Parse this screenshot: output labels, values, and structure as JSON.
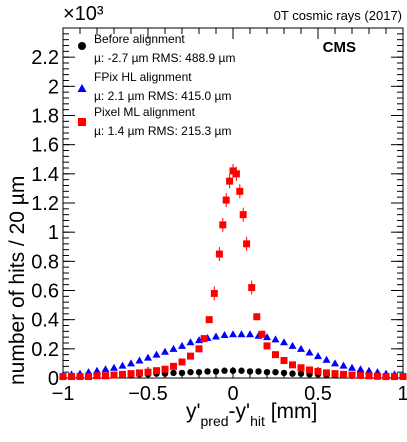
{
  "chart_data": {
    "type": "scatter",
    "top_right_label": "0T cosmic rays (2017)",
    "experiment_label": "CMS",
    "y_multiplier": "×10³",
    "ylabel": "number of hits / 20 µm",
    "xlabel_main": "y'",
    "xlabel_sub1": "pred",
    "xlabel_mid": "-y'",
    "xlabel_sub2": "hit",
    "xlabel_unit": " [mm]",
    "xlim": [
      -1,
      1
    ],
    "ylim": [
      0,
      2.4
    ],
    "x_ticks": [
      -1,
      -0.5,
      0,
      0.5,
      1
    ],
    "x_tick_labels": [
      "−1",
      "−0.5",
      "0",
      "0.5",
      "1"
    ],
    "y_ticks": [
      0,
      0.2,
      0.4,
      0.6,
      0.8,
      1,
      1.2,
      1.4,
      1.6,
      1.8,
      2,
      2.2
    ],
    "y_tick_labels": [
      "0",
      "0.2",
      "0.4",
      "0.6",
      "0.8",
      "1",
      "1.2",
      "1.4",
      "1.6",
      "1.8",
      "2",
      "2.2"
    ],
    "legend_position": "top-left",
    "series": [
      {
        "name": "Before alignment",
        "stats": "µ: -2.7 µm RMS: 488.9 µm",
        "marker": "circle",
        "color": "#000000",
        "x": [
          -1.0,
          -0.95,
          -0.9,
          -0.85,
          -0.8,
          -0.75,
          -0.7,
          -0.65,
          -0.6,
          -0.55,
          -0.5,
          -0.45,
          -0.4,
          -0.35,
          -0.3,
          -0.25,
          -0.2,
          -0.15,
          -0.1,
          -0.05,
          0.0,
          0.05,
          0.1,
          0.15,
          0.2,
          0.25,
          0.3,
          0.35,
          0.4,
          0.45,
          0.5,
          0.55,
          0.6,
          0.65,
          0.7,
          0.75,
          0.8,
          0.85,
          0.9,
          0.95,
          1.0
        ],
        "y": [
          0.01,
          0.01,
          0.01,
          0.015,
          0.015,
          0.015,
          0.02,
          0.02,
          0.02,
          0.025,
          0.025,
          0.03,
          0.03,
          0.035,
          0.035,
          0.04,
          0.04,
          0.045,
          0.045,
          0.05,
          0.05,
          0.05,
          0.045,
          0.045,
          0.04,
          0.04,
          0.035,
          0.03,
          0.03,
          0.025,
          0.025,
          0.02,
          0.02,
          0.02,
          0.015,
          0.015,
          0.015,
          0.01,
          0.01,
          0.01,
          0.01
        ]
      },
      {
        "name": "FPix HL alignment",
        "stats": "µ: 2.1 µm RMS: 415.0 µm",
        "marker": "triangle",
        "color": "#0000ff",
        "x": [
          -1.0,
          -0.95,
          -0.9,
          -0.85,
          -0.8,
          -0.75,
          -0.7,
          -0.65,
          -0.6,
          -0.55,
          -0.5,
          -0.45,
          -0.4,
          -0.35,
          -0.3,
          -0.25,
          -0.2,
          -0.15,
          -0.1,
          -0.05,
          0.0,
          0.05,
          0.1,
          0.15,
          0.2,
          0.25,
          0.3,
          0.35,
          0.4,
          0.45,
          0.5,
          0.55,
          0.6,
          0.65,
          0.7,
          0.75,
          0.8,
          0.85,
          0.9,
          0.95,
          1.0
        ],
        "y": [
          0.02,
          0.025,
          0.03,
          0.04,
          0.05,
          0.06,
          0.07,
          0.085,
          0.1,
          0.12,
          0.14,
          0.16,
          0.18,
          0.2,
          0.22,
          0.245,
          0.26,
          0.275,
          0.285,
          0.295,
          0.3,
          0.3,
          0.3,
          0.29,
          0.28,
          0.265,
          0.245,
          0.22,
          0.2,
          0.175,
          0.15,
          0.125,
          0.1,
          0.085,
          0.07,
          0.06,
          0.05,
          0.04,
          0.03,
          0.025,
          0.02
        ]
      },
      {
        "name": "Pixel ML alignment",
        "stats": "µ: 1.4 µm RMS: 215.3 µm",
        "marker": "square",
        "color": "#ff0000",
        "x": [
          -1.0,
          -0.95,
          -0.9,
          -0.85,
          -0.8,
          -0.75,
          -0.7,
          -0.65,
          -0.6,
          -0.55,
          -0.5,
          -0.45,
          -0.4,
          -0.35,
          -0.3,
          -0.25,
          -0.2,
          -0.17,
          -0.14,
          -0.11,
          -0.08,
          -0.06,
          -0.04,
          -0.02,
          0.0,
          0.02,
          0.04,
          0.06,
          0.08,
          0.11,
          0.14,
          0.17,
          0.2,
          0.25,
          0.3,
          0.35,
          0.4,
          0.45,
          0.5,
          0.55,
          0.6,
          0.65,
          0.7,
          0.75,
          0.8,
          0.85,
          0.9,
          0.95,
          1.0
        ],
        "y": [
          0.01,
          0.01,
          0.01,
          0.01,
          0.015,
          0.015,
          0.02,
          0.025,
          0.03,
          0.035,
          0.04,
          0.05,
          0.06,
          0.08,
          0.11,
          0.15,
          0.2,
          0.27,
          0.4,
          0.58,
          0.85,
          1.05,
          1.22,
          1.35,
          1.42,
          1.4,
          1.28,
          1.12,
          0.92,
          0.62,
          0.42,
          0.3,
          0.22,
          0.16,
          0.12,
          0.09,
          0.07,
          0.055,
          0.045,
          0.035,
          0.03,
          0.025,
          0.02,
          0.018,
          0.015,
          0.012,
          0.01,
          0.01,
          0.01
        ]
      }
    ]
  }
}
